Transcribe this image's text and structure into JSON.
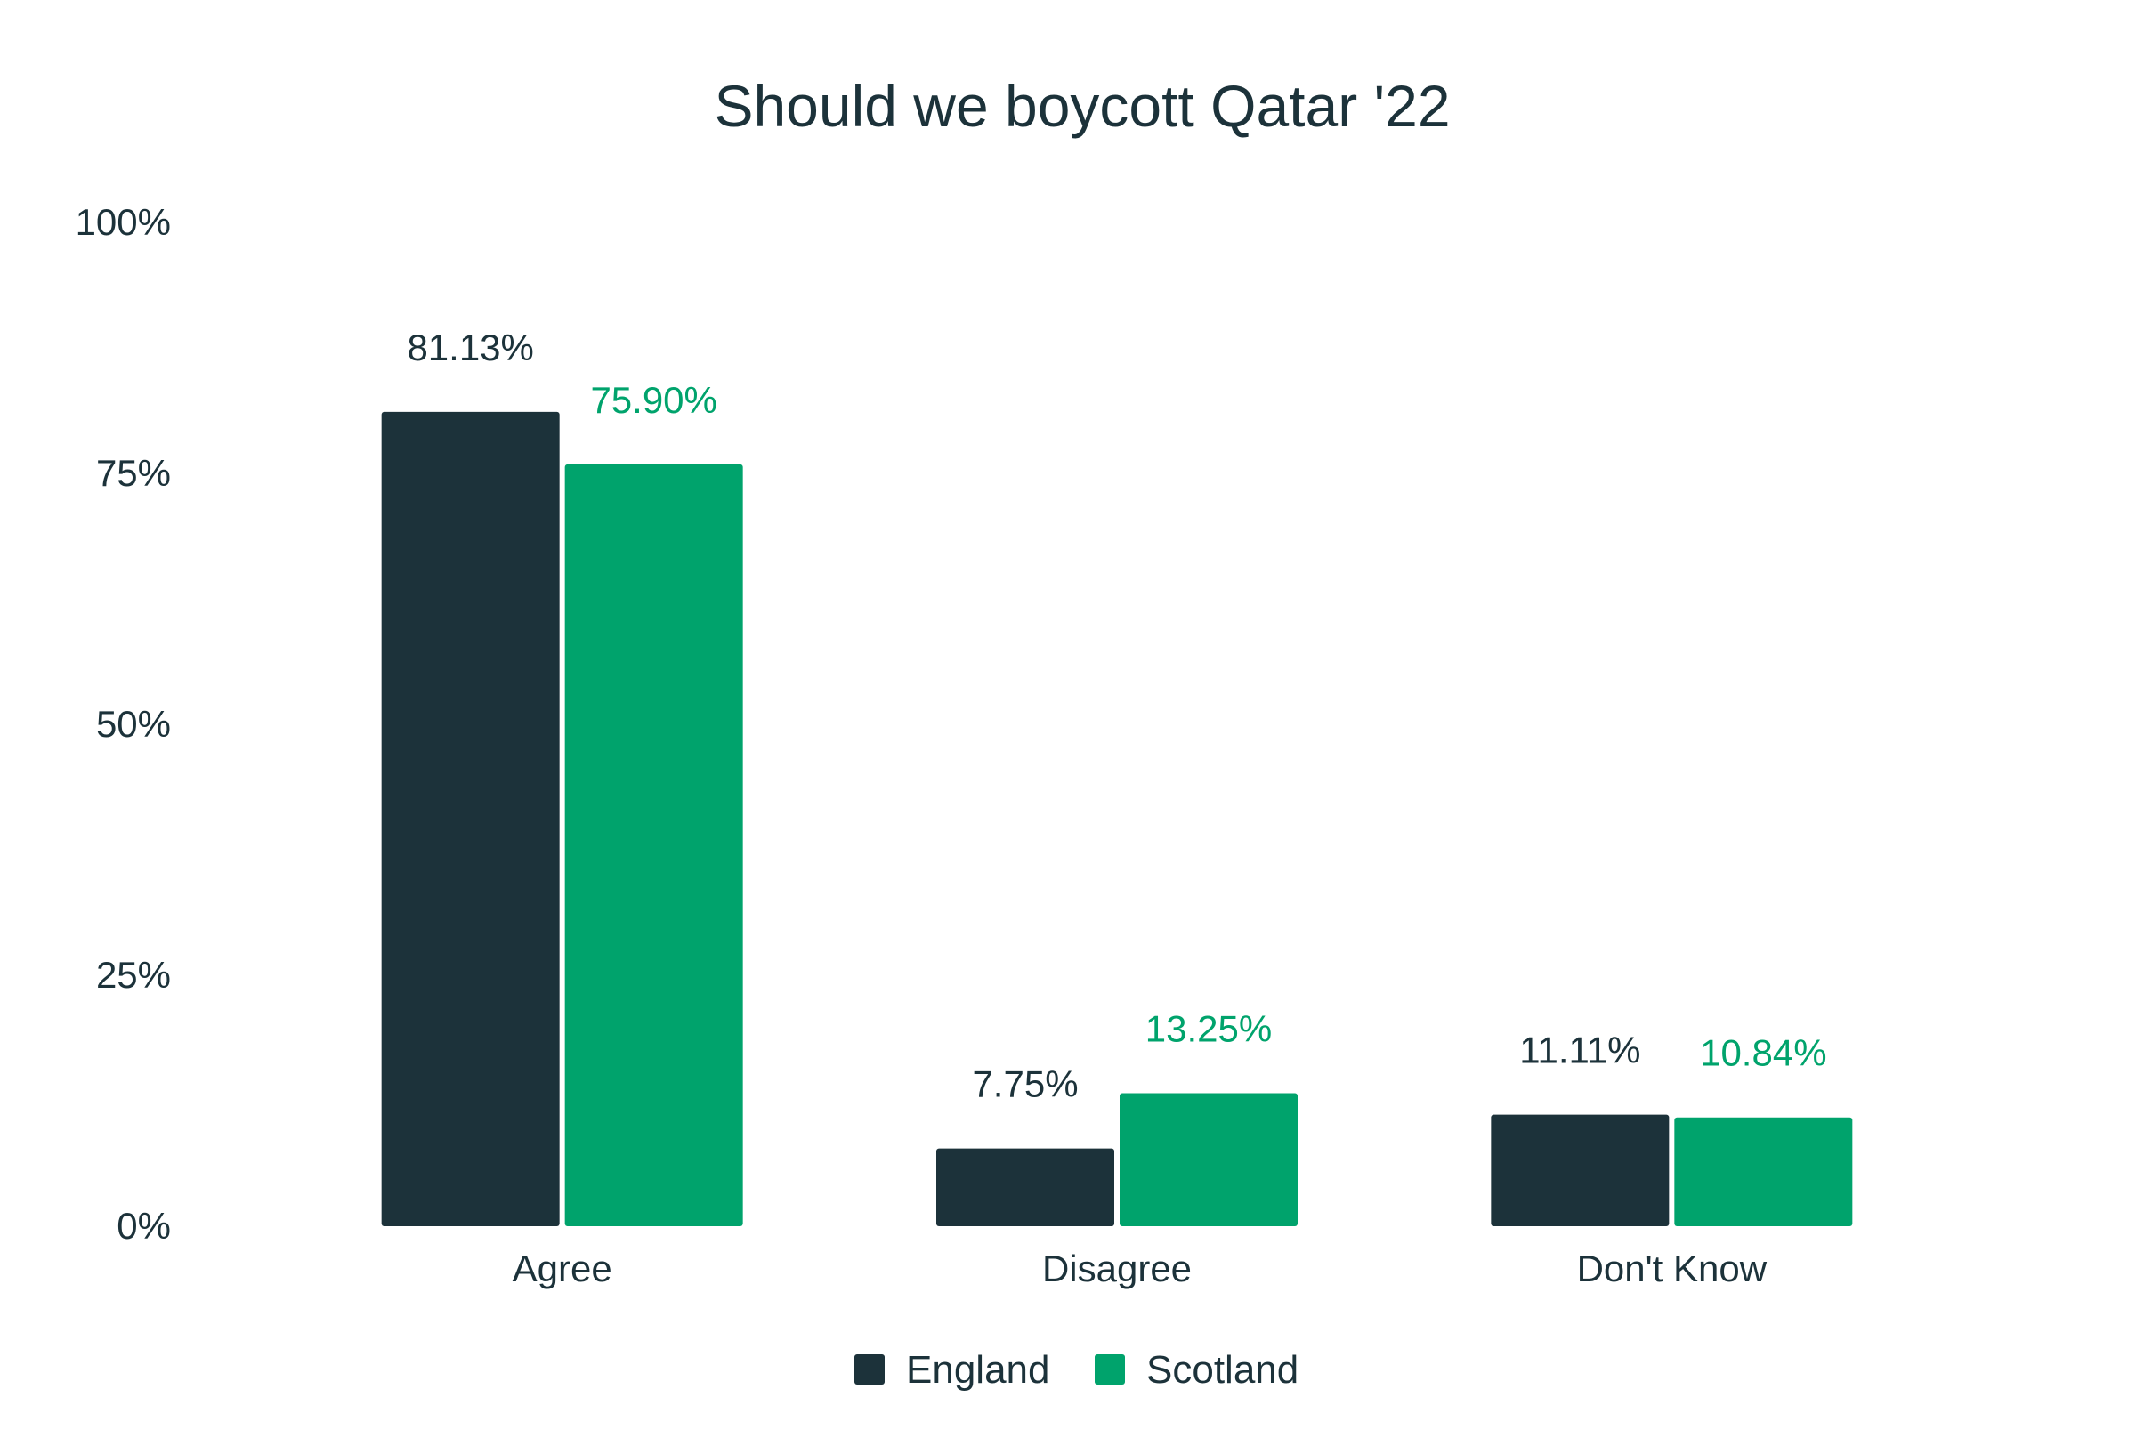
{
  "chart_data": {
    "type": "bar",
    "title": "Should we boycott Qatar '22",
    "xlabel": "",
    "ylabel": "",
    "categories": [
      "Agree",
      "Disagree",
      "Don't Know"
    ],
    "series": [
      {
        "name": "England",
        "values": [
          81.13,
          7.75,
          11.11
        ],
        "labels": [
          "81.13%",
          "7.75%",
          "11.11%"
        ],
        "color": "#1c323a"
      },
      {
        "name": "Scotland",
        "values": [
          75.9,
          13.25,
          10.84
        ],
        "labels": [
          "75.90%",
          "13.25%",
          "10.84%"
        ],
        "color": "#00a36c"
      }
    ],
    "ylim": [
      0,
      100
    ],
    "yticks": [
      0,
      25,
      50,
      75,
      100
    ],
    "ytick_labels": [
      "0%",
      "25%",
      "50%",
      "75%",
      "100%"
    ],
    "grid": false,
    "legend": "bottom-center"
  }
}
